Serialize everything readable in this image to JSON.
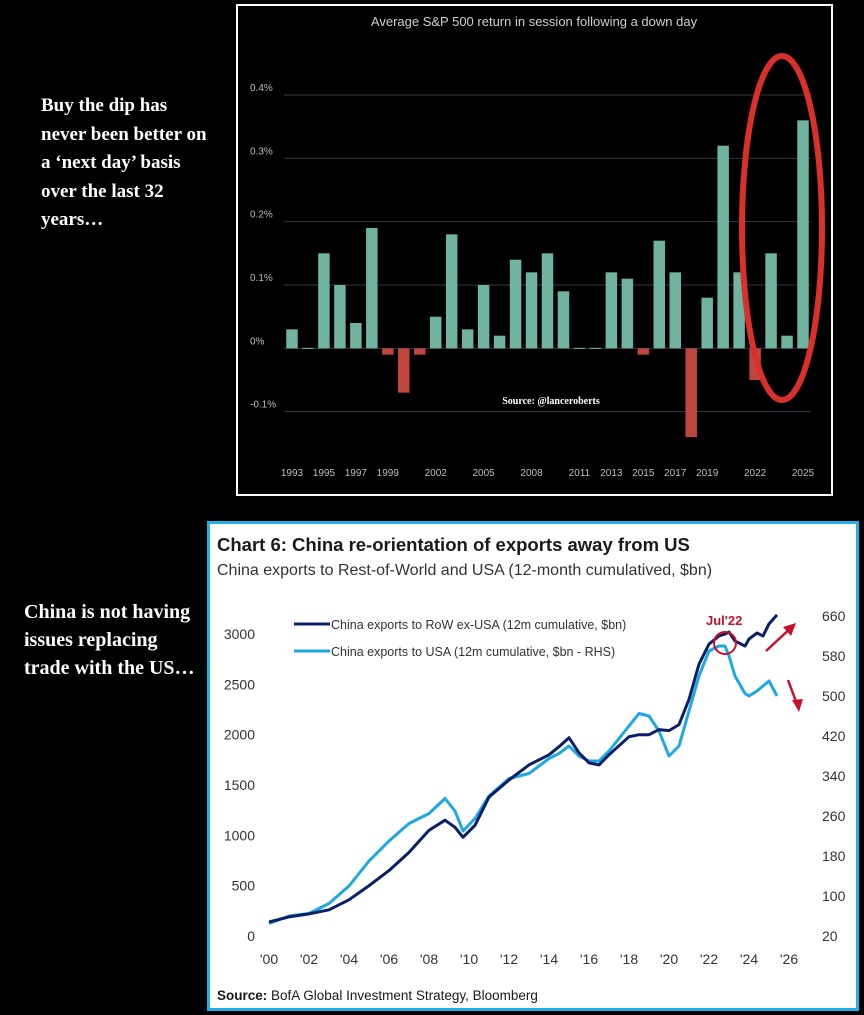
{
  "left_texts": {
    "dip": "Buy the dip has never been better on a ‘next day’ basis over the last 32 years…",
    "china": "China is not having issues replacing trade with the US…"
  },
  "chart_data": [
    {
      "type": "bar",
      "title": "Average S&P 500 return in session following a down day",
      "source_note": "Source: @lanceroberts",
      "x_tick_labels": [
        "1993",
        "1995",
        "1997",
        "1999",
        "2002",
        "2005",
        "2008",
        "2011",
        "2013",
        "2015",
        "2017",
        "2019",
        "2022",
        "2025"
      ],
      "y_tick_labels": [
        "0.4%",
        "0.3%",
        "0.2%",
        "0.1%",
        "0%",
        "-0.1%"
      ],
      "ylim": [
        -0.17,
        0.43
      ],
      "positive_color": "#6fb3a0",
      "negative_color": "#c0453c",
      "highlight_color": "#d9302c",
      "categories": [
        "1993",
        "1994",
        "1995",
        "1996",
        "1997",
        "1998",
        "1999",
        "2000",
        "2001",
        "2002",
        "2003",
        "2004",
        "2005",
        "2006",
        "2007",
        "2008",
        "2009",
        "2010",
        "2011",
        "2012",
        "2013",
        "2014",
        "2015",
        "2016",
        "2017",
        "2018",
        "2019",
        "2020",
        "2021",
        "2022",
        "2023",
        "2024",
        "2025"
      ],
      "values": [
        0.03,
        0,
        0.15,
        0.1,
        0.04,
        0.19,
        -0.01,
        -0.07,
        -0.01,
        0.05,
        0.18,
        0.03,
        0.1,
        0.02,
        0.14,
        0.12,
        0.15,
        0.09,
        0,
        0,
        0.12,
        0.11,
        -0.01,
        0.17,
        0.12,
        -0.14,
        0.08,
        0.32,
        0.12,
        -0.05,
        0.15,
        0.02,
        0.36
      ]
    },
    {
      "type": "line",
      "title": "Chart 6: China re-orientation of exports away from US",
      "subtitle": "China exports to Rest-of-World and USA (12-month cumulatived, $bn)",
      "source_label": "Source:",
      "source_text": " BofA Global Investment Strategy, Bloomberg",
      "annotation": "Jul'22",
      "annotation_color": "#c8102e",
      "x_tick_labels": [
        "'00",
        "'02",
        "'04",
        "'06",
        "'08",
        "'10",
        "'12",
        "'14",
        "'16",
        "'18",
        "'20",
        "'22",
        "'24",
        "'26"
      ],
      "y_left_ticks": [
        "3000",
        "2500",
        "2000",
        "1500",
        "1000",
        "500",
        "0"
      ],
      "y_right_ticks": [
        "660",
        "580",
        "500",
        "420",
        "340",
        "260",
        "180",
        "100",
        "20"
      ],
      "xlim": [
        2000,
        2026.3
      ],
      "ylim_left": [
        0,
        3200
      ],
      "ylim_right": [
        20,
        660
      ],
      "series": [
        {
          "name": "China exports to RoW ex-USA (12m cumulative, $bn)",
          "axis": "left",
          "color": "#0b1f66",
          "x": [
            2000,
            2001,
            2002,
            2003,
            2004,
            2005,
            2006,
            2007,
            2008,
            2008.8,
            2009.3,
            2009.7,
            2010.3,
            2011,
            2012,
            2013,
            2014,
            2014.5,
            2015,
            2015.5,
            2016,
            2016.5,
            2017,
            2018,
            2018.5,
            2019,
            2019.5,
            2020,
            2020.5,
            2021,
            2021.5,
            2022,
            2022.5,
            2022.8,
            2023,
            2023.3,
            2023.8,
            2024,
            2024.4,
            2024.7,
            2025,
            2025.4
          ],
          "y": [
            140,
            190,
            220,
            260,
            360,
            500,
            650,
            830,
            1050,
            1150,
            1080,
            980,
            1100,
            1380,
            1550,
            1700,
            1800,
            1880,
            1970,
            1820,
            1720,
            1700,
            1800,
            1980,
            2000,
            2000,
            2050,
            2040,
            2100,
            2350,
            2700,
            2900,
            2980,
            3000,
            3020,
            2930,
            2880,
            2950,
            3010,
            2980,
            3100,
            3190
          ]
        },
        {
          "name": "China exports to USA (12m cumulative, $bn - RHS)",
          "axis": "right",
          "color": "#1ca8e3",
          "x": [
            2000,
            2001,
            2002,
            2003,
            2004,
            2005,
            2006,
            2007,
            2008,
            2008.8,
            2009.3,
            2009.7,
            2010.3,
            2011,
            2012,
            2013,
            2014,
            2014.5,
            2015,
            2015.5,
            2016,
            2016.5,
            2017,
            2018,
            2018.5,
            2019,
            2019.5,
            2020,
            2020.5,
            2021,
            2021.5,
            2022,
            2022.5,
            2022.8,
            2023,
            2023.3,
            2023.8,
            2024,
            2024.4,
            2024.7,
            2025,
            2025.4
          ],
          "y": [
            45,
            60,
            65,
            85,
            120,
            170,
            210,
            245,
            265,
            295,
            270,
            230,
            255,
            300,
            335,
            345,
            375,
            385,
            400,
            380,
            370,
            370,
            390,
            440,
            465,
            460,
            430,
            380,
            400,
            470,
            540,
            590,
            600,
            600,
            580,
            540,
            505,
            500,
            510,
            520,
            530,
            500
          ]
        }
      ]
    }
  ]
}
